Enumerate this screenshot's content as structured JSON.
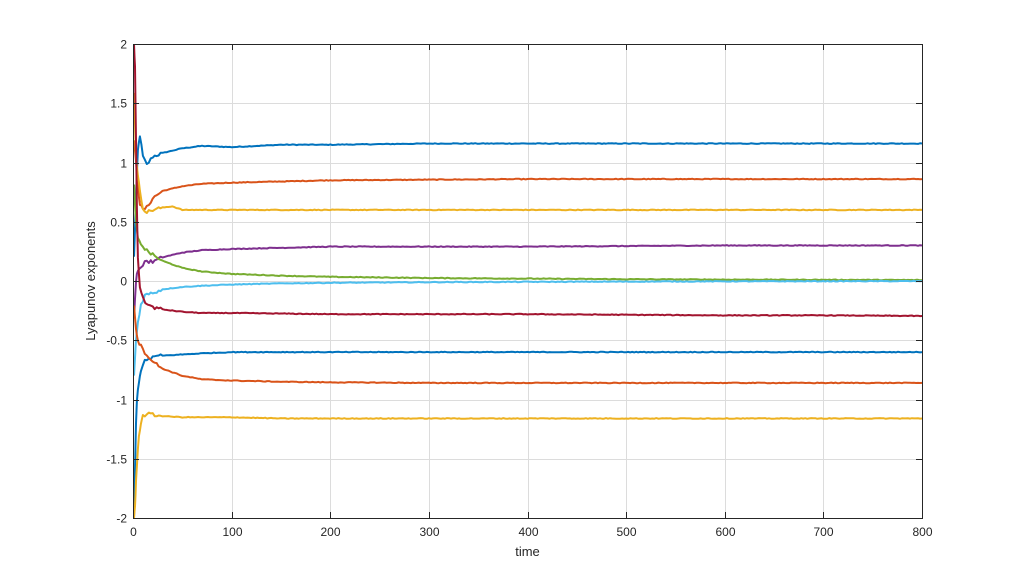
{
  "chart_data": {
    "type": "line",
    "title": "",
    "xlabel": "time",
    "ylabel": "Lyapunov exponents",
    "xlim": [
      0,
      800
    ],
    "ylim": [
      -2,
      2
    ],
    "xticks": [
      0,
      100,
      200,
      300,
      400,
      500,
      600,
      700,
      800
    ],
    "yticks": [
      -2,
      -1.5,
      -1,
      -0.5,
      0,
      0.5,
      1,
      1.5,
      2
    ],
    "xtick_labels": [
      "0",
      "100",
      "200",
      "300",
      "400",
      "500",
      "600",
      "700",
      "800"
    ],
    "ytick_labels": [
      "-2",
      "-1.5",
      "-1",
      "-0.5",
      "0",
      "0.5",
      "1",
      "1.5",
      "2"
    ],
    "grid": true,
    "legend": "none",
    "series": [
      {
        "color": "#0072BD",
        "x": [
          1,
          3,
          5,
          7,
          10,
          14,
          20,
          30,
          50,
          70,
          100,
          150,
          200,
          300,
          400,
          500,
          600,
          700,
          800
        ],
        "y": [
          0.2,
          0.7,
          1.1,
          1.23,
          1.05,
          0.98,
          1.05,
          1.08,
          1.12,
          1.14,
          1.13,
          1.15,
          1.15,
          1.16,
          1.16,
          1.16,
          1.16,
          1.16,
          1.16
        ]
      },
      {
        "color": "#D95319",
        "x": [
          1,
          3,
          5,
          7,
          10,
          14,
          20,
          30,
          50,
          70,
          100,
          150,
          200,
          300,
          400,
          500,
          600,
          700,
          800
        ],
        "y": [
          1.2,
          1.0,
          0.8,
          0.65,
          0.6,
          0.62,
          0.7,
          0.76,
          0.8,
          0.82,
          0.83,
          0.84,
          0.85,
          0.855,
          0.86,
          0.86,
          0.86,
          0.86,
          0.86
        ]
      },
      {
        "color": "#EDB120",
        "x": [
          1,
          3,
          5,
          7,
          10,
          14,
          20,
          30,
          40,
          50,
          70,
          100,
          150,
          200,
          300,
          400,
          500,
          600,
          700,
          800
        ],
        "y": [
          1.6,
          1.05,
          0.9,
          0.75,
          0.62,
          0.58,
          0.6,
          0.62,
          0.63,
          0.6,
          0.6,
          0.6,
          0.6,
          0.6,
          0.6,
          0.6,
          0.6,
          0.6,
          0.6,
          0.6
        ]
      },
      {
        "color": "#7E2F8E",
        "x": [
          1,
          3,
          5,
          8,
          12,
          20,
          30,
          50,
          70,
          100,
          150,
          200,
          300,
          400,
          500,
          600,
          700,
          800
        ],
        "y": [
          -0.3,
          0.0,
          0.1,
          0.1,
          0.17,
          0.16,
          0.2,
          0.24,
          0.26,
          0.27,
          0.28,
          0.29,
          0.29,
          0.29,
          0.295,
          0.3,
          0.3,
          0.3
        ]
      },
      {
        "color": "#77AC30",
        "x": [
          1,
          3,
          5,
          8,
          12,
          20,
          30,
          50,
          70,
          100,
          150,
          200,
          300,
          400,
          500,
          600,
          700,
          800
        ],
        "y": [
          0.8,
          0.5,
          0.35,
          0.32,
          0.27,
          0.22,
          0.17,
          0.11,
          0.08,
          0.06,
          0.045,
          0.035,
          0.025,
          0.02,
          0.015,
          0.012,
          0.01,
          0.008
        ]
      },
      {
        "color": "#4DBEEE",
        "x": [
          1,
          3,
          5,
          8,
          12,
          20,
          30,
          50,
          70,
          100,
          150,
          200,
          300,
          400,
          500,
          600,
          700,
          800
        ],
        "y": [
          -0.8,
          -0.5,
          -0.35,
          -0.2,
          -0.12,
          -0.1,
          -0.07,
          -0.05,
          -0.04,
          -0.03,
          -0.02,
          -0.015,
          -0.01,
          -0.007,
          -0.005,
          -0.003,
          -0.002,
          -0.001
        ]
      },
      {
        "color": "#A2142F",
        "x": [
          1,
          2,
          3,
          4,
          5,
          7,
          10,
          15,
          20,
          30,
          50,
          70,
          100,
          150,
          200,
          300,
          400,
          500,
          600,
          700,
          800
        ],
        "y": [
          2.0,
          1.8,
          1.2,
          0.6,
          0.2,
          -0.05,
          -0.15,
          -0.2,
          -0.22,
          -0.24,
          -0.26,
          -0.27,
          -0.27,
          -0.275,
          -0.28,
          -0.28,
          -0.28,
          -0.285,
          -0.29,
          -0.29,
          -0.295
        ]
      },
      {
        "color": "#0072BD",
        "x": [
          1,
          2,
          3,
          4,
          6,
          8,
          12,
          16,
          20,
          30,
          50,
          70,
          100,
          150,
          200,
          300,
          400,
          500,
          600,
          700,
          800
        ],
        "y": [
          -2.0,
          -1.6,
          -1.2,
          -1.0,
          -0.85,
          -0.75,
          -0.68,
          -0.66,
          -0.64,
          -0.63,
          -0.62,
          -0.61,
          -0.6,
          -0.6,
          -0.6,
          -0.6,
          -0.6,
          -0.6,
          -0.6,
          -0.6,
          -0.6
        ]
      },
      {
        "color": "#D95319",
        "x": [
          1,
          3,
          5,
          8,
          12,
          20,
          30,
          50,
          70,
          100,
          150,
          200,
          300,
          400,
          500,
          600,
          700,
          800
        ],
        "y": [
          -0.2,
          -0.4,
          -0.5,
          -0.55,
          -0.6,
          -0.68,
          -0.74,
          -0.8,
          -0.83,
          -0.84,
          -0.85,
          -0.855,
          -0.86,
          -0.86,
          -0.86,
          -0.86,
          -0.86,
          -0.86
        ]
      },
      {
        "color": "#EDB120",
        "x": [
          1,
          2,
          3,
          4,
          6,
          8,
          10,
          14,
          20,
          30,
          50,
          70,
          100,
          150,
          200,
          300,
          400,
          500,
          600,
          700,
          800
        ],
        "y": [
          -2.0,
          -1.9,
          -1.7,
          -1.55,
          -1.3,
          -1.2,
          -1.14,
          -1.12,
          -1.13,
          -1.14,
          -1.15,
          -1.15,
          -1.15,
          -1.16,
          -1.16,
          -1.16,
          -1.16,
          -1.16,
          -1.16,
          -1.16,
          -1.16
        ]
      }
    ]
  }
}
